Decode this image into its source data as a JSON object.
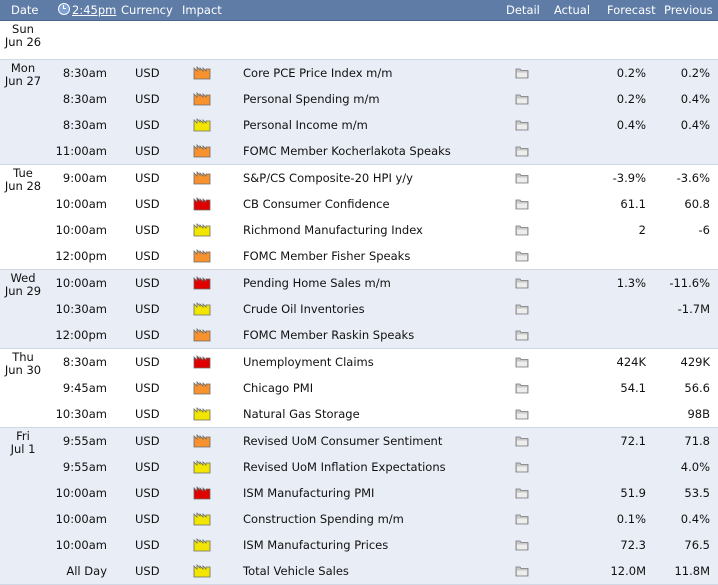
{
  "header": {
    "date": "Date",
    "time": "2:45pm",
    "currency": "Currency",
    "impact": "Impact",
    "detail": "Detail",
    "actual": "Actual",
    "forecast": "Forecast",
    "previous": "Previous"
  },
  "colors": {
    "high": "#e00000",
    "medium": "#f7922e",
    "low": "#f2e600",
    "header": "#5e7ca6",
    "band": "#e9edf5"
  },
  "days": [
    {
      "dow": "Sun",
      "date": "Jun 26",
      "events": []
    },
    {
      "dow": "Mon",
      "date": "Jun 27",
      "events": [
        {
          "time": "8:30am",
          "currency": "USD",
          "impact": "medium",
          "title": "Core PCE Price Index m/m",
          "actual": "",
          "forecast": "0.2%",
          "previous": "0.2%"
        },
        {
          "time": "8:30am",
          "currency": "USD",
          "impact": "medium",
          "title": "Personal Spending m/m",
          "actual": "",
          "forecast": "0.2%",
          "previous": "0.4%"
        },
        {
          "time": "8:30am",
          "currency": "USD",
          "impact": "low",
          "title": "Personal Income m/m",
          "actual": "",
          "forecast": "0.4%",
          "previous": "0.4%"
        },
        {
          "time": "11:00am",
          "currency": "USD",
          "impact": "medium",
          "title": "FOMC Member Kocherlakota Speaks",
          "actual": "",
          "forecast": "",
          "previous": ""
        }
      ]
    },
    {
      "dow": "Tue",
      "date": "Jun 28",
      "events": [
        {
          "time": "9:00am",
          "currency": "USD",
          "impact": "medium",
          "title": "S&P/CS Composite-20 HPI y/y",
          "actual": "",
          "forecast": "-3.9%",
          "previous": "-3.6%"
        },
        {
          "time": "10:00am",
          "currency": "USD",
          "impact": "high",
          "title": "CB Consumer Confidence",
          "actual": "",
          "forecast": "61.1",
          "previous": "60.8"
        },
        {
          "time": "10:00am",
          "currency": "USD",
          "impact": "low",
          "title": "Richmond Manufacturing Index",
          "actual": "",
          "forecast": "2",
          "previous": "-6"
        },
        {
          "time": "12:00pm",
          "currency": "USD",
          "impact": "medium",
          "title": "FOMC Member Fisher Speaks",
          "actual": "",
          "forecast": "",
          "previous": ""
        }
      ]
    },
    {
      "dow": "Wed",
      "date": "Jun 29",
      "events": [
        {
          "time": "10:00am",
          "currency": "USD",
          "impact": "high",
          "title": "Pending Home Sales m/m",
          "actual": "",
          "forecast": "1.3%",
          "previous": "-11.6%"
        },
        {
          "time": "10:30am",
          "currency": "USD",
          "impact": "low",
          "title": "Crude Oil Inventories",
          "actual": "",
          "forecast": "",
          "previous": "-1.7M"
        },
        {
          "time": "12:00pm",
          "currency": "USD",
          "impact": "medium",
          "title": "FOMC Member Raskin Speaks",
          "actual": "",
          "forecast": "",
          "previous": ""
        }
      ]
    },
    {
      "dow": "Thu",
      "date": "Jun 30",
      "events": [
        {
          "time": "8:30am",
          "currency": "USD",
          "impact": "high",
          "title": "Unemployment Claims",
          "actual": "",
          "forecast": "424K",
          "previous": "429K"
        },
        {
          "time": "9:45am",
          "currency": "USD",
          "impact": "medium",
          "title": "Chicago PMI",
          "actual": "",
          "forecast": "54.1",
          "previous": "56.6"
        },
        {
          "time": "10:30am",
          "currency": "USD",
          "impact": "low",
          "title": "Natural Gas Storage",
          "actual": "",
          "forecast": "",
          "previous": "98B"
        }
      ]
    },
    {
      "dow": "Fri",
      "date": "Jul 1",
      "events": [
        {
          "time": "9:55am",
          "currency": "USD",
          "impact": "medium",
          "title": "Revised UoM Consumer Sentiment",
          "actual": "",
          "forecast": "72.1",
          "previous": "71.8"
        },
        {
          "time": "9:55am",
          "currency": "USD",
          "impact": "low",
          "title": "Revised UoM Inflation Expectations",
          "actual": "",
          "forecast": "",
          "previous": "4.0%"
        },
        {
          "time": "10:00am",
          "currency": "USD",
          "impact": "high",
          "title": "ISM Manufacturing PMI",
          "actual": "",
          "forecast": "51.9",
          "previous": "53.5"
        },
        {
          "time": "10:00am",
          "currency": "USD",
          "impact": "low",
          "title": "Construction Spending m/m",
          "actual": "",
          "forecast": "0.1%",
          "previous": "0.4%"
        },
        {
          "time": "10:00am",
          "currency": "USD",
          "impact": "low",
          "title": "ISM Manufacturing Prices",
          "actual": "",
          "forecast": "72.3",
          "previous": "76.5"
        },
        {
          "time": "All Day",
          "currency": "USD",
          "impact": "low",
          "title": "Total Vehicle Sales",
          "actual": "",
          "forecast": "12.0M",
          "previous": "11.8M"
        }
      ]
    }
  ]
}
